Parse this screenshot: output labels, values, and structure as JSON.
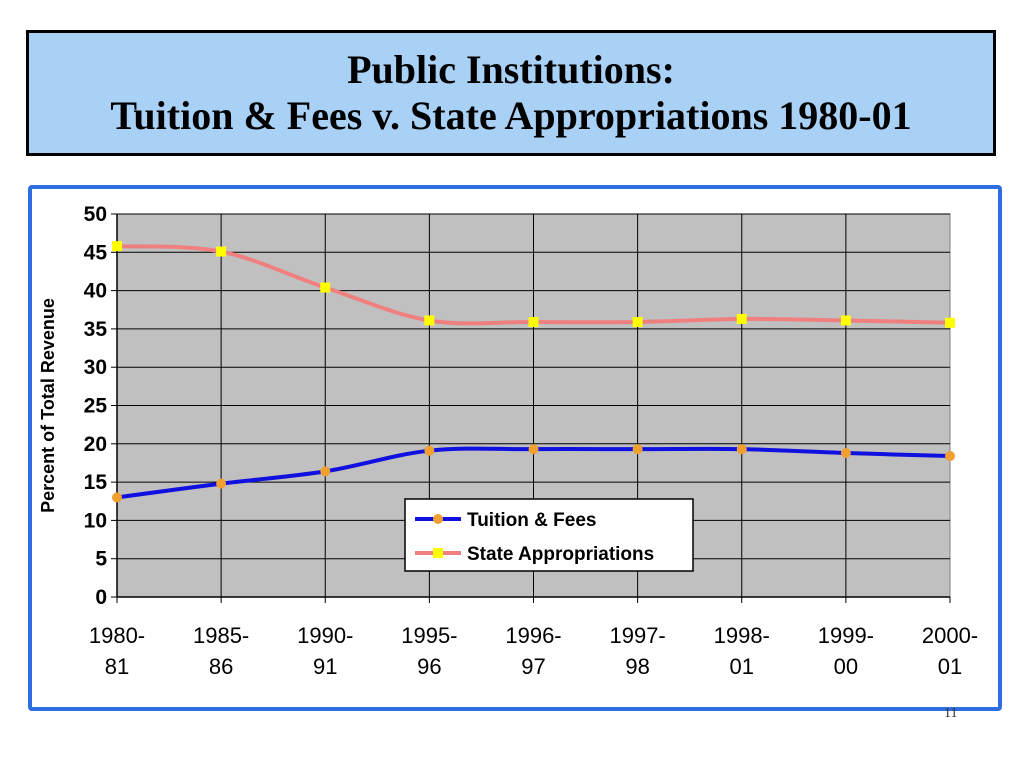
{
  "slide": {
    "title_line1": "Public Institutions:",
    "title_line2": "Tuition & Fees v. State Appropriations 1980-01",
    "page_number": "11"
  },
  "colors": {
    "title_background": "#a9d0f5",
    "frame_border": "#2f6ee0",
    "plot_background": "#c0c0c0",
    "tuition_line": "#1010e0",
    "tuition_marker": "#f0a030",
    "state_line": "#f08080",
    "state_marker": "#ffff00"
  },
  "chart_data": {
    "type": "line",
    "title": "",
    "xlabel": "",
    "ylabel": "Percent of Total Revenue",
    "ylim": [
      0,
      50
    ],
    "yticks": [
      0,
      5,
      10,
      15,
      20,
      25,
      30,
      35,
      40,
      45,
      50
    ],
    "grid": true,
    "legend_position": "bottom-center",
    "categories": [
      [
        "1980-",
        "81"
      ],
      [
        "1985-",
        "86"
      ],
      [
        "1990-",
        "91"
      ],
      [
        "1995-",
        "96"
      ],
      [
        "1996-",
        "97"
      ],
      [
        "1997-",
        "98"
      ],
      [
        "1998-",
        "01"
      ],
      [
        "1999-",
        "00"
      ],
      [
        "2000-",
        "01"
      ]
    ],
    "series": [
      {
        "name": "Tuition & Fees",
        "values": [
          13.0,
          14.8,
          16.4,
          19.1,
          19.3,
          19.3,
          19.3,
          18.8,
          18.4
        ],
        "marker": "circle"
      },
      {
        "name": "State Appropriations",
        "values": [
          45.8,
          45.1,
          40.4,
          36.1,
          35.9,
          35.9,
          36.3,
          36.1,
          35.8
        ],
        "marker": "square"
      }
    ]
  }
}
